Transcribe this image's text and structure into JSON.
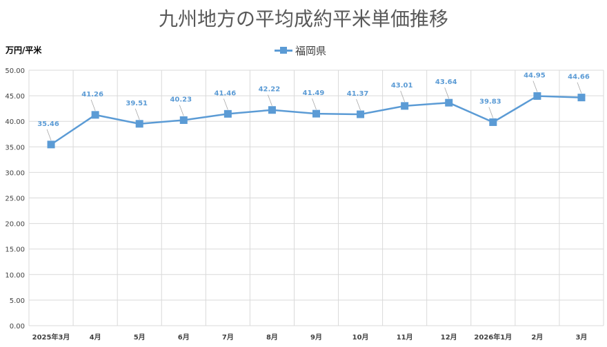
{
  "chart_data": {
    "type": "line",
    "title": "九州地方の平均成約平米単価推移",
    "unit_label": "万円/平米",
    "categories": [
      "2025年3月",
      "4月",
      "5月",
      "6月",
      "7月",
      "8月",
      "9月",
      "10月",
      "11月",
      "12月",
      "2026年1月",
      "2月",
      "3月"
    ],
    "series": [
      {
        "name": "福岡県",
        "values": [
          35.46,
          41.26,
          39.51,
          40.23,
          41.46,
          42.22,
          41.49,
          41.37,
          43.01,
          43.64,
          39.83,
          44.95,
          44.66
        ]
      }
    ],
    "data_labels": [
      "35.46",
      "41.26",
      "39.51",
      "40.23",
      "41.46",
      "42.22",
      "41.49",
      "41.37",
      "43.01",
      "43.64",
      "39.83",
      "44.95",
      "44.66"
    ],
    "y_ticks": [
      "0.00",
      "5.00",
      "10.00",
      "15.00",
      "20.00",
      "25.00",
      "30.00",
      "35.00",
      "40.00",
      "45.00",
      "50.00"
    ],
    "ylim": [
      0,
      50
    ],
    "grid": true,
    "legend_position": "top-center",
    "colors": {
      "series": "#5B9BD5",
      "grid": "#D9D9D9",
      "label": "#5B9BD5",
      "axis_text": "#404040"
    }
  }
}
